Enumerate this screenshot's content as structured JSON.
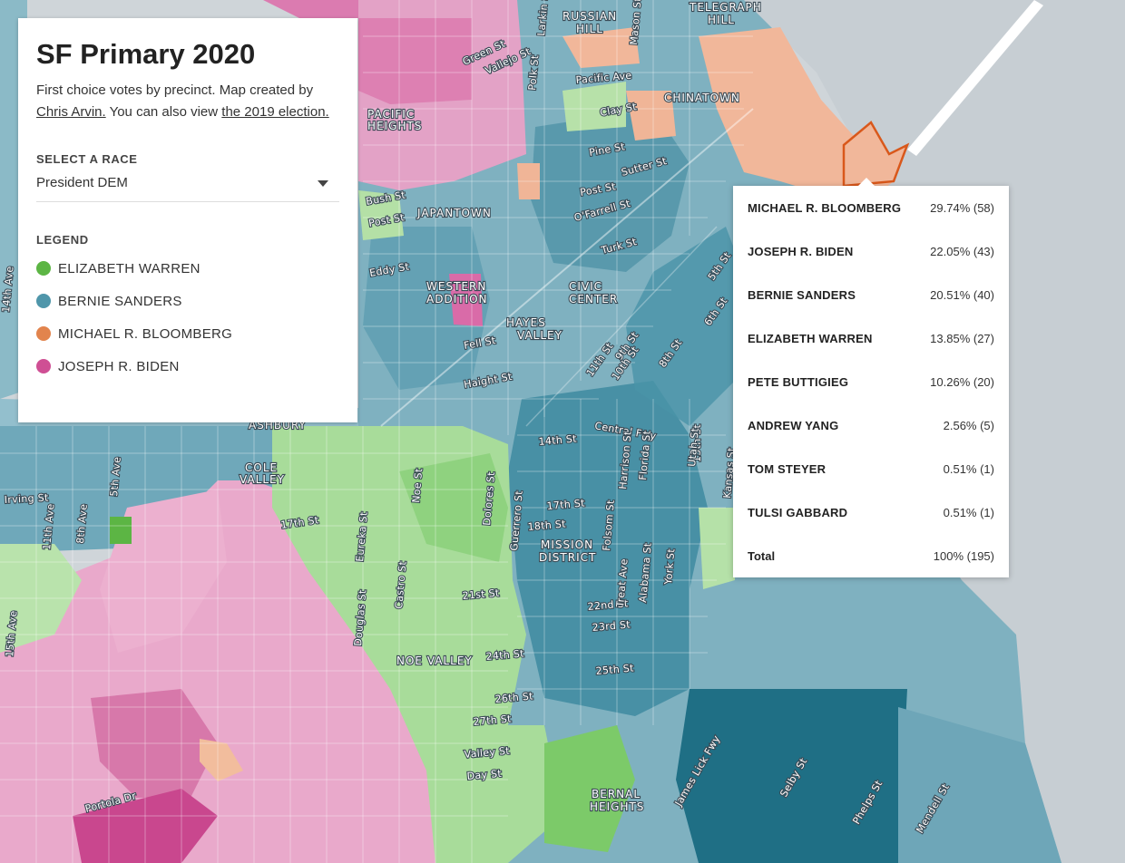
{
  "panel": {
    "title": "SF Primary 2020",
    "desc_prefix": "First choice votes by precinct. Map created by ",
    "author_link": "Chris Arvin.",
    "desc_middle": " You can also view ",
    "election_link": "the 2019 election.",
    "select_label": "SELECT A RACE",
    "select_value": "President DEM",
    "legend_label": "LEGEND",
    "legend": [
      {
        "name": "ELIZABETH WARREN",
        "color": "#5cb544"
      },
      {
        "name": "BERNIE SANDERS",
        "color": "#4f96aa"
      },
      {
        "name": "MICHAEL R. BLOOMBERG",
        "color": "#e2844d"
      },
      {
        "name": "JOSEPH R. BIDEN",
        "color": "#cf4f94"
      }
    ]
  },
  "tooltip": {
    "rows": [
      {
        "name": "MICHAEL R. BLOOMBERG",
        "value": "29.74% (58)"
      },
      {
        "name": "JOSEPH R. BIDEN",
        "value": "22.05% (43)"
      },
      {
        "name": "BERNIE SANDERS",
        "value": "20.51% (40)"
      },
      {
        "name": "ELIZABETH WARREN",
        "value": "13.85% (27)"
      },
      {
        "name": "PETE BUTTIGIEG",
        "value": "10.26% (20)"
      },
      {
        "name": "ANDREW YANG",
        "value": "2.56% (5)"
      },
      {
        "name": "TOM STEYER",
        "value": "0.51% (1)"
      },
      {
        "name": "TULSI GABBARD",
        "value": "0.51% (1)"
      }
    ],
    "total_label": "Total",
    "total_value": "100% (195)"
  },
  "map": {
    "neighborhoods": [
      "PACIFIC",
      "HEIGHTS",
      "RUSSIAN",
      "HILL",
      "TELEGRAPH",
      "HILL",
      "CHINATOWN",
      "JAPANTOWN",
      "WESTERN",
      "ADDITION",
      "CIVIC",
      "CENTER",
      "HAYES",
      "VALLEY",
      "ASHBURY",
      "COLE",
      "VALLEY",
      "MISSION",
      "DISTRICT",
      "NOE VALLEY",
      "BERNAL",
      "HEIGHTS"
    ],
    "streets": [
      "Pacific Ave",
      "Clay St",
      "Pine St",
      "Sutter St",
      "Post St",
      "O'Farrell St",
      "Turk St",
      "Bush St",
      "Post St",
      "Eddy St",
      "Fell St",
      "Haight St",
      "9th St",
      "10th St",
      "11th St",
      "8th St",
      "6th St",
      "5th St",
      "Central Fwy",
      "14th St",
      "15th St",
      "17th St",
      "18th St",
      "Irving St",
      "17th St",
      "21st St",
      "22nd St",
      "23rd St",
      "24th St",
      "25th St",
      "26th St",
      "27th St",
      "Valley St",
      "Day St",
      "Portola Dr",
      "Green St",
      "Vallejo St",
      "Larkin St",
      "Polk St",
      "Mason St",
      "Noe St",
      "Dolores St",
      "Guerrero St",
      "Harrison St",
      "Florida St",
      "Folsom St",
      "Treat Ave",
      "Alabama St",
      "York St",
      "Utah St",
      "Kansas St",
      "Eureka St",
      "Castro St",
      "Douglas St",
      "5th Ave",
      "8th Ave",
      "11th Ave",
      "14th Ave",
      "15th Ave",
      "James Lick Fwy",
      "Selby St",
      "Phelps St",
      "Mendell St"
    ]
  }
}
